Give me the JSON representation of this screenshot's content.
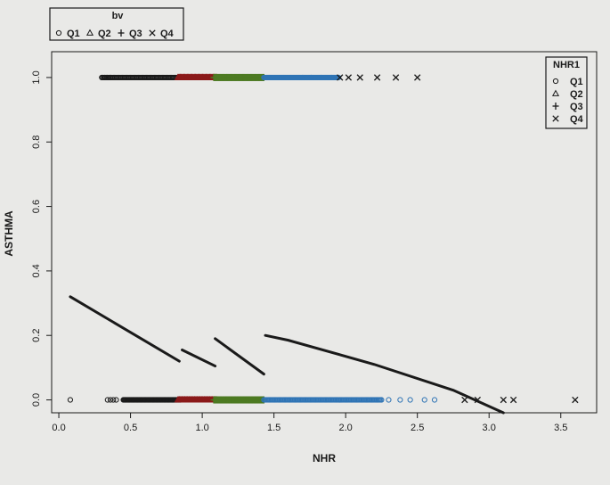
{
  "chart_data": {
    "type": "scatter",
    "xlabel": "NHR",
    "ylabel": "ASTHMA",
    "xlim": [
      -0.05,
      3.75
    ],
    "ylim": [
      -0.04,
      1.08
    ],
    "x_ticks": [
      0.0,
      0.5,
      1.0,
      1.5,
      2.0,
      2.5,
      3.0,
      3.5
    ],
    "x_tick_labels": [
      "0.0",
      "0.5",
      "1.0",
      "1.5",
      "2.0",
      "2.5",
      "3.0",
      "3.5"
    ],
    "y_ticks": [
      0.0,
      0.2,
      0.4,
      0.6,
      0.8,
      1.0
    ],
    "y_tick_labels": [
      "0.0",
      "0.2",
      "0.4",
      "0.6",
      "0.8",
      "1.0"
    ],
    "grid": false,
    "legends": [
      {
        "title": "bv",
        "placement": "top-left",
        "orientation": "horizontal",
        "entries": [
          {
            "label": "Q1",
            "symbol": "circle"
          },
          {
            "label": "Q2",
            "symbol": "triangle"
          },
          {
            "label": "Q3",
            "symbol": "plus"
          },
          {
            "label": "Q4",
            "symbol": "cross"
          }
        ]
      },
      {
        "title": "NHR1",
        "placement": "top-right",
        "orientation": "vertical",
        "entries": [
          {
            "label": "Q1",
            "symbol": "circle"
          },
          {
            "label": "Q2",
            "symbol": "triangle"
          },
          {
            "label": "Q3",
            "symbol": "plus"
          },
          {
            "label": "Q4",
            "symbol": "cross"
          }
        ]
      }
    ],
    "point_groups": [
      {
        "symbol": "circle",
        "color": "#1a1a1a",
        "y": 1,
        "range": [
          0.3,
          0.85
        ],
        "n": 70,
        "solo": [
          0.3,
          0.32,
          0.34,
          0.36
        ]
      },
      {
        "symbol": "triangle",
        "color": "#8b1a1a",
        "y": 1,
        "range": [
          0.83,
          1.1
        ],
        "n": 55
      },
      {
        "symbol": "plus",
        "color": "#4d7a22",
        "y": 1,
        "range": [
          1.08,
          1.43
        ],
        "n": 70
      },
      {
        "symbol": "circle",
        "color": "#2f74b5",
        "y": 1,
        "range": [
          1.43,
          1.95
        ],
        "n": 90,
        "solo": [
          1.7,
          1.76,
          1.83,
          1.9
        ]
      },
      {
        "symbol": "cross",
        "color": "#1a1a1a",
        "y": 1,
        "range": [
          1.95,
          1.95
        ],
        "n": 0,
        "solo": [
          1.96,
          2.02,
          2.1,
          2.22,
          2.35,
          2.5
        ]
      },
      {
        "symbol": "circle",
        "color": "#1a1a1a",
        "y": 0,
        "range": [
          0.45,
          0.85
        ],
        "n": 80,
        "solo": [
          0.08,
          0.34,
          0.36,
          0.38,
          0.4
        ]
      },
      {
        "symbol": "triangle",
        "color": "#8b1a1a",
        "y": 0,
        "range": [
          0.83,
          1.1
        ],
        "n": 60
      },
      {
        "symbol": "plus",
        "color": "#4d7a22",
        "y": 0,
        "range": [
          1.08,
          1.43
        ],
        "n": 75
      },
      {
        "symbol": "circle",
        "color": "#2f74b5",
        "y": 0,
        "range": [
          1.43,
          2.25
        ],
        "n": 110,
        "solo": [
          2.3,
          2.38,
          2.45,
          2.55,
          2.62
        ]
      },
      {
        "symbol": "cross",
        "color": "#1a1a1a",
        "y": 0,
        "range": [
          1.95,
          1.95
        ],
        "n": 0,
        "solo": [
          2.83,
          2.92,
          3.1,
          3.17,
          3.6
        ]
      }
    ],
    "fit_lines": [
      {
        "color": "#1a1a1a",
        "points": [
          [
            0.08,
            0.32
          ],
          [
            0.84,
            0.12
          ]
        ]
      },
      {
        "color": "#1a1a1a",
        "points": [
          [
            0.86,
            0.155
          ],
          [
            1.09,
            0.105
          ]
        ]
      },
      {
        "color": "#1a1a1a",
        "points": [
          [
            1.09,
            0.19
          ],
          [
            1.43,
            0.08
          ]
        ]
      },
      {
        "color": "#1a1a1a",
        "points": [
          [
            1.44,
            0.2
          ],
          [
            1.6,
            0.185
          ],
          [
            2.2,
            0.11
          ],
          [
            2.75,
            0.03
          ],
          [
            3.1,
            -0.04
          ]
        ]
      }
    ]
  }
}
